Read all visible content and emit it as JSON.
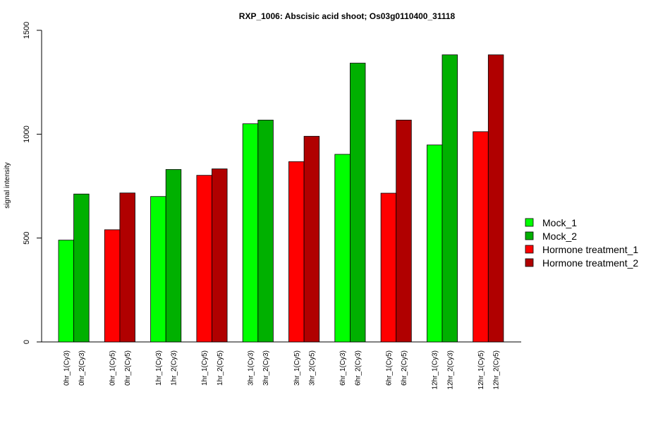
{
  "chart_data": {
    "type": "bar",
    "title": "RXP_1006: Abscisic acid shoot; Os03g0110400_31118",
    "xlabel": "",
    "ylabel": "signal intensity",
    "ylim": [
      0,
      1500
    ],
    "yticks": [
      0,
      500,
      1000,
      1500
    ],
    "grid": false,
    "legend_position": "right",
    "categories": [
      "0hr_1(Cy3)",
      "0hr_2(Cy3)",
      "0hr_1(Cy5)",
      "0hr_2(Cy5)",
      "1hr_1(Cy3)",
      "1hr_2(Cy3)",
      "1hr_1(Cy5)",
      "1hr_2(Cy5)",
      "3hr_1(Cy3)",
      "3hr_2(Cy3)",
      "3hr_1(Cy5)",
      "3hr_2(Cy5)",
      "6hr_1(Cy3)",
      "6hr_2(Cy3)",
      "6hr_1(Cy5)",
      "6hr_2(Cy5)",
      "12hr_1(Cy3)",
      "12hr_2(Cy3)",
      "12hr_1(Cy5)",
      "12hr_2(Cy5)"
    ],
    "values": [
      490,
      712,
      540,
      717,
      700,
      830,
      802,
      833,
      1050,
      1068,
      868,
      990,
      903,
      1342,
      716,
      1068,
      948,
      1382,
      1012,
      1382
    ],
    "series_index": [
      0,
      1,
      2,
      3,
      0,
      1,
      2,
      3,
      0,
      1,
      2,
      3,
      0,
      1,
      2,
      3,
      0,
      1,
      2,
      3
    ],
    "series": [
      {
        "name": "Mock_1",
        "color": "#00ff00"
      },
      {
        "name": "Mock_2",
        "color": "#00b000"
      },
      {
        "name": "Hormone treatment_1",
        "color": "#ff0000"
      },
      {
        "name": "Hormone treatment_2",
        "color": "#b00000"
      }
    ]
  }
}
